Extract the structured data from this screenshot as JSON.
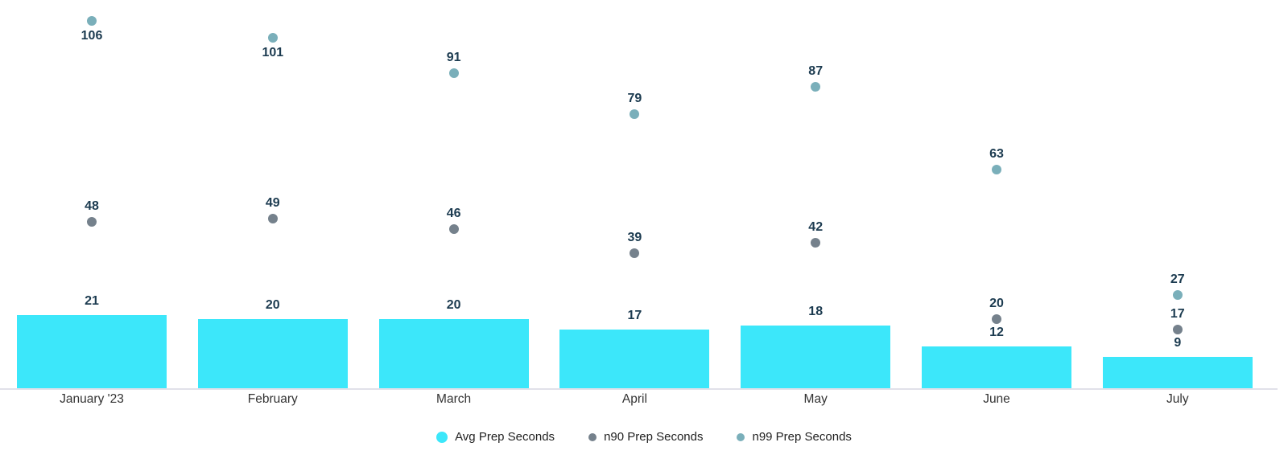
{
  "chart_data": {
    "type": "bar",
    "subtype": "bar-with-scatter-overlay",
    "title": "",
    "xlabel": "",
    "ylabel": "",
    "categories": [
      "January '23",
      "February",
      "March",
      "April",
      "May",
      "June",
      "July"
    ],
    "series": [
      {
        "name": "Avg Prep Seconds",
        "type": "bar",
        "color": "#3ce7fa",
        "values": [
          21,
          20,
          20,
          17,
          18,
          12,
          9
        ]
      },
      {
        "name": "n90 Prep Seconds",
        "type": "scatter",
        "color": "#75818c",
        "values": [
          48,
          49,
          46,
          39,
          42,
          20,
          17
        ]
      },
      {
        "name": "n99 Prep Seconds",
        "type": "scatter",
        "color": "#7aafba",
        "values": [
          106,
          101,
          91,
          79,
          87,
          63,
          27
        ]
      }
    ],
    "ylim": [
      0,
      112
    ],
    "grid": false,
    "y_axis_visible": false,
    "value_labels": true,
    "legend_position": "bottom",
    "colors": {
      "value_label": "#1c3b50",
      "axis_label": "#333333",
      "legend_text": "#222222",
      "axis_line": "#e1e1e9",
      "background": "#ffffff"
    }
  }
}
